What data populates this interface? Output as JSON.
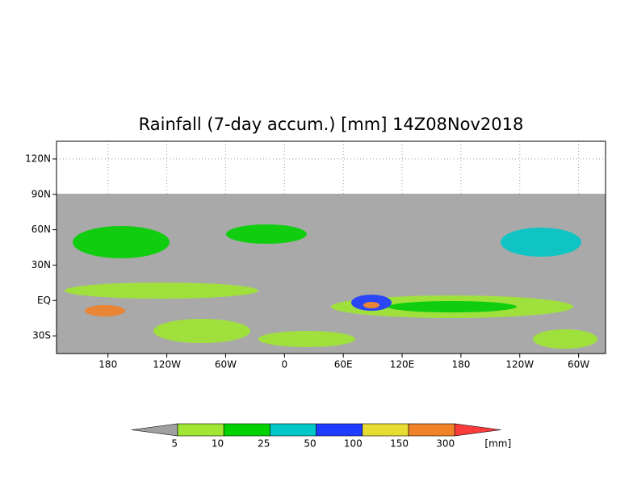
{
  "map": {
    "title": "Rainfall (7-day accum.) [mm] 14Z08Nov2018",
    "xlim": [
      127.5,
      687.5
    ],
    "ylim": [
      -45,
      135
    ],
    "xticks": [
      180,
      {
        "value": 240,
        "label": "120W"
      },
      {
        "value": 300,
        "label": "60W"
      },
      {
        "value": 360,
        "label": "0"
      },
      {
        "value": 420,
        "label": "60E"
      },
      {
        "value": 480,
        "label": "120E"
      },
      {
        "value": 540,
        "label": "180"
      },
      {
        "value": 600,
        "label": "120W"
      },
      {
        "value": 660,
        "label": "60W"
      }
    ],
    "yticks": [
      {
        "value": -30,
        "label": "30S"
      },
      {
        "value": 0,
        "label": "EQ"
      },
      {
        "value": 30,
        "label": "30N"
      },
      {
        "value": 60,
        "label": "60N"
      },
      {
        "value": 90,
        "label": "90N"
      },
      {
        "value": 120,
        "label": "120N"
      }
    ],
    "colorbar": {
      "levels": [
        5,
        10,
        25,
        50,
        100,
        150,
        300
      ],
      "colors": [
        "#a0a0a0",
        "#a0e632",
        "#00d200",
        "#00c8c8",
        "#1e3cff",
        "#e6dc32",
        "#f08228",
        "#fa3c3c"
      ],
      "unit": "[mm]"
    }
  }
}
